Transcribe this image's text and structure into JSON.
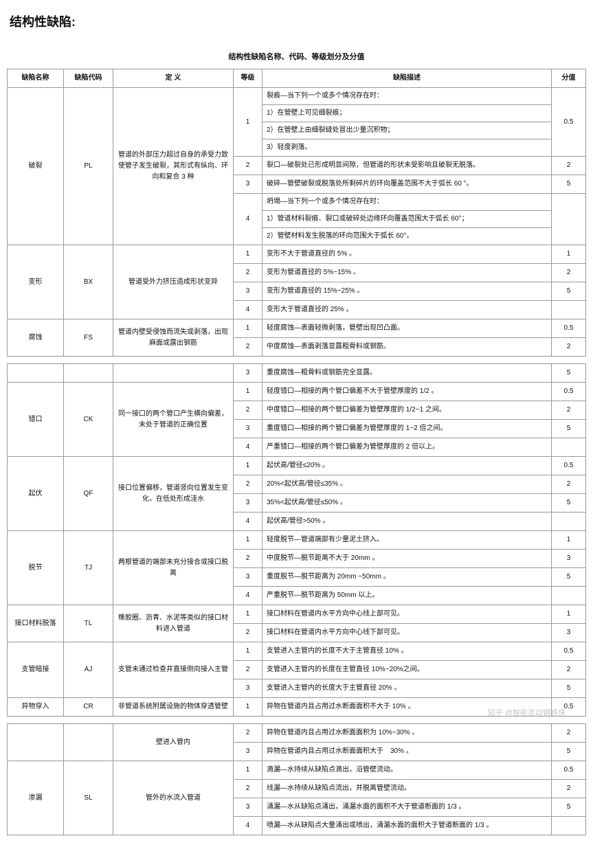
{
  "page_title": "结构性缺陷:",
  "table_caption": "结构性缺陷名称、代码、等级划分及分值",
  "headers": {
    "name": "缺陷名称",
    "code": "缺陷代码",
    "def": "定 义",
    "level": "等级",
    "desc": "缺陷描述",
    "score": "分值"
  },
  "pl": {
    "name": "破裂",
    "code": "PL",
    "def": "管道的外部压力超过自身的承受力致使管子发生破裂，其形式有纵向、环向和复合 3 种",
    "l1a": "裂痕—当下列一个或多个情况存在时：",
    "l1b": "1）在管壁上可见细裂痕；",
    "l1c": "2）在管壁上由细裂缝处冒出少量沉积物；",
    "l1d": "3）轻度剥落。",
    "l1v": "0.5",
    "l2d": "裂口—破裂处已形成明显间隙，但管道的形状未受影响且破裂无脱落。",
    "l2v": "2",
    "l3d": "破碎—管壁破裂或脱落处所剩碎片的环向覆盖范围不大于弧长 60 °。",
    "l3v": "5",
    "l4a": "坍塌—当下列一个或多个情况存在时：",
    "l4b": "1）管道材料裂痕、裂口或破碎处边缘环向覆盖范围大于弧长 60°；",
    "l4c": "2）管壁材料发生脱落的环向范围大于弧长 60°。"
  },
  "bx": {
    "name": "变形",
    "code": "BX",
    "def": "管道受外力挤压造成形状变异",
    "l1d": "变形不大于管道直径的 5% 。",
    "l1v": "1",
    "l2d": "变形为管道直径的 5%~15% 。",
    "l2v": "2",
    "l3d": "变形为管道直径的 15%~25% 。",
    "l3v": "5",
    "l4d": "变形大于管道直径的 25% 。"
  },
  "fs": {
    "name": "腐蚀",
    "code": "FS",
    "def": "管道内壁受侵蚀而流失或剥落，出现麻面或露出钢筋",
    "l1d": "轻度腐蚀—表面轻微剥落，管壁出现凹凸面。",
    "l1v": "0.5",
    "l2d": "中度腐蚀—表面剥落显露粗骨料或钢筋。",
    "l2v": "2",
    "l3d": "重度腐蚀—粗骨料或钢筋完全显露。",
    "l3v": "5"
  },
  "ck": {
    "name": "错口",
    "code": "CK",
    "def": "同一接口的两个管口产生横向偏差，未处于管道的正确位置",
    "l1d": "轻度错口—相接的两个管口偏差不大于管壁厚度的 1/2 。",
    "l1v": "0.5",
    "l2d": "中度错口—相接的两个管口偏差为管壁厚度的 1/2~1 之间。",
    "l2v": "2",
    "l3d": "重度错口—相接的两个管口偏差为管壁厚度的 1~2 倍之间。",
    "l3v": "5",
    "l4d": "严重错口—相接的两个管口偏差为管壁厚度的 2 倍以上。"
  },
  "qf": {
    "name": "起伏",
    "code": "QF",
    "def": "接口位置偏移，管道竖向位置发生变化，在低处形成洼水",
    "l1d": "起伏高/管径≤20% 。",
    "l1v": "0.5",
    "l2d": "20%<起伏高/管径≤35% 。",
    "l2v": "2",
    "l3d": "35%<起伏高/管径≤50% 。",
    "l3v": "5",
    "l4d": "起伏高/管径>50% 。"
  },
  "tj": {
    "name": "脱节",
    "code": "TJ",
    "def": "两根管道的端部未充分接合或接口脱离",
    "l1d": "轻度脱节—管道端部有少量泥土挤入。",
    "l1v": "1",
    "l2d": "中度脱节—脱节距离不大于 20mm 。",
    "l2v": "3",
    "l3d": "重度脱节—脱节距离为 20mm ~50mm 。",
    "l3v": "5",
    "l4d": "严重脱节—脱节距离为 50mm 以上。"
  },
  "tl": {
    "name": "接口材料脱落",
    "code": "TL",
    "def": "橡胶圈、沥青、水泥等类似的接口材料进入管道",
    "l1d": "接口材料在管道内水平方向中心线上部可见。",
    "l1v": "1",
    "l2d": "接口材料在管道内水平方向中心线下部可见。",
    "l2v": "3"
  },
  "aj": {
    "name": "支管暗接",
    "code": "AJ",
    "def": "支管未通过检查井直接侧向接入主管",
    "l1d": "支管进入主管内的长度不大于主管直径 10% 。",
    "l1v": "0.5",
    "l2d": "支管进入主管内的长度在主管直径 10%~20%之间。",
    "l2v": "2",
    "l3d": "支管进入主管内的长度大于主管直径 20% 。",
    "l3v": "5"
  },
  "cr": {
    "name": "异物穿入",
    "code": "CR",
    "def": "非管道系统附属设施的物体穿透管壁",
    "l1d": "异物在管道内且占用过水断面面积不大于 10% 。",
    "l1v": "0.5",
    "b2def": "壁进入管内",
    "b2d": "异物在管道内且占用过水断面面积为 10%~30% 。",
    "b2v": "2",
    "b3d": "异物在管道内且占用过水断面面积大于　30% 。",
    "b3v": "5"
  },
  "sl": {
    "name": "渗漏",
    "code": "SL",
    "def": "管外的水流入管道",
    "l1d": "滴漏—水持续从缺陷点滴出，沿管壁流动。",
    "l1v": "0.5",
    "l2d": "线漏—水持续从缺陷点流出，并脱离管壁流动。",
    "l2v": "2",
    "l3d": "涌漏—水从缺陷点涌出，涌漏水面的面积不大于管道断面的 1/3 。",
    "l3v": "5",
    "l4d": "喷漏—水从缺陷点大量涌出或喷出，涌漏水面的面积大于管道断面的 1/3 。"
  },
  "watermark": "知乎 @智能灵动钢铁侠"
}
